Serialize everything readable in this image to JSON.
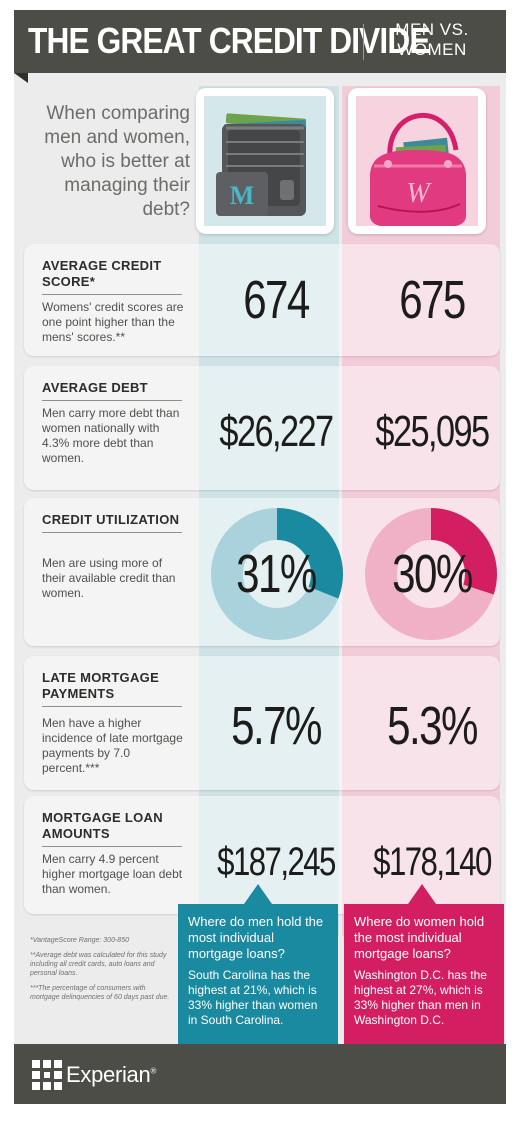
{
  "header": {
    "title": "THE GREAT CREDIT DIVIDE",
    "subtitle_line1": "MEN VS.",
    "subtitle_line2": "WOMEN"
  },
  "intro": {
    "question": "When comparing men and women, who is better at managing their debt?"
  },
  "icons": {
    "men": "wallet-icon",
    "men_letter": "M",
    "women": "purse-icon",
    "women_letter": "W"
  },
  "colors": {
    "men": "#1a8aa1",
    "men_light": "#a9d2dc",
    "women": "#d31f62",
    "women_light": "#f0b0c6",
    "banner": "#4b4d46"
  },
  "rows": [
    {
      "label": "AVERAGE CREDIT SCORE*",
      "description": "Womens' credit scores are one point higher than the mens' scores.**",
      "men_value": "674",
      "women_value": "675"
    },
    {
      "label": "AVERAGE DEBT",
      "description": "Men carry more debt than women nationally with 4.3% more debt than women.",
      "men_value": "$26,227",
      "women_value": "$25,095"
    },
    {
      "label": "CREDIT UTILIZATION",
      "description": "Men are using more of their available credit than women.",
      "men_value": "31%",
      "women_value": "30%",
      "men_fraction": 0.31,
      "women_fraction": 0.3
    },
    {
      "label": "LATE MORTGAGE PAYMENTS",
      "description": "Men have a higher incidence of late mortgage payments by 7.0 percent.***",
      "men_value": "5.7%",
      "women_value": "5.3%"
    },
    {
      "label": "MORTGAGE LOAN AMOUNTS",
      "description": "Men carry 4.9 percent higher mortgage loan debt than women.",
      "men_value": "$187,245",
      "women_value": "$178,140"
    }
  ],
  "callouts": {
    "men_question": "Where do men hold the most individual mortgage loans?",
    "men_answer": "South Carolina has the highest at 21%, which is 33% higher than women in South Carolina.",
    "women_question": "Where do women hold the most individual mortgage loans?",
    "women_answer": "Washington D.C. has the highest at 27%, which is 33% higher than men in Washington D.C."
  },
  "footnotes": {
    "note1": "*VantageScore Range: 300-850",
    "note2": "**Average debt was calculated for this study including all credit cards, auto loans and personal loans.",
    "note3": "***The percentage of consumers with mortgage delinquencies of 60 days past due."
  },
  "footer": {
    "brand": "Experian",
    "trademark": "®"
  }
}
